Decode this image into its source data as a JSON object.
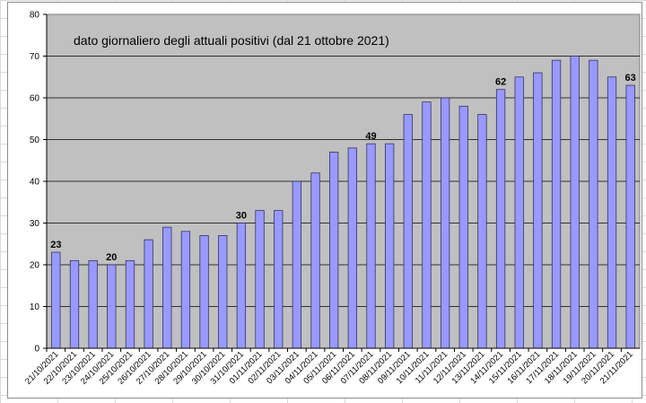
{
  "chart_data": {
    "type": "bar",
    "title": "dato giornaliero degli attuali positivi (dal 21 ottobre 2021)",
    "xlabel": "",
    "ylabel": "",
    "ylim": [
      0,
      80
    ],
    "yticks": [
      0,
      10,
      20,
      30,
      40,
      50,
      60,
      70,
      80
    ],
    "grid": true,
    "legend": "none",
    "colors": {
      "plot_background": "#c0c0c0",
      "bar_fill": "#9999ff",
      "bar_stroke": "#333366",
      "gridline": "#000000"
    },
    "categories": [
      "21/10/2021",
      "22/10/2021",
      "23/10/2021",
      "24/10/2021",
      "25/10/2021",
      "26/10/2021",
      "27/10/2021",
      "28/10/2021",
      "29/10/2021",
      "30/10/2021",
      "31/10/2021",
      "01/11/2021",
      "02/11/2021",
      "03/11/2021",
      "04/11/2021",
      "05/11/2021",
      "06/11/2021",
      "07/11/2021",
      "08/11/2021",
      "09/11/2021",
      "10/11/2021",
      "11/11/2021",
      "12/11/2021",
      "13/11/2021",
      "14/11/2021",
      "15/11/2021",
      "16/11/2021",
      "17/11/2021",
      "18/11/2021",
      "19/11/2021",
      "20/11/2021",
      "21/11/2021"
    ],
    "values": [
      23,
      21,
      21,
      20,
      21,
      26,
      29,
      28,
      27,
      27,
      30,
      33,
      33,
      40,
      42,
      47,
      48,
      49,
      49,
      56,
      59,
      60,
      58,
      56,
      62,
      65,
      66,
      69,
      70,
      69,
      65,
      63
    ],
    "data_labels": [
      {
        "category": "21/10/2021",
        "text": "23"
      },
      {
        "category": "24/10/2021",
        "text": "20"
      },
      {
        "category": "31/10/2021",
        "text": "30"
      },
      {
        "category": "07/11/2021",
        "text": "49"
      },
      {
        "category": "14/11/2021",
        "text": "62"
      },
      {
        "category": "21/11/2021",
        "text": "63"
      }
    ]
  }
}
